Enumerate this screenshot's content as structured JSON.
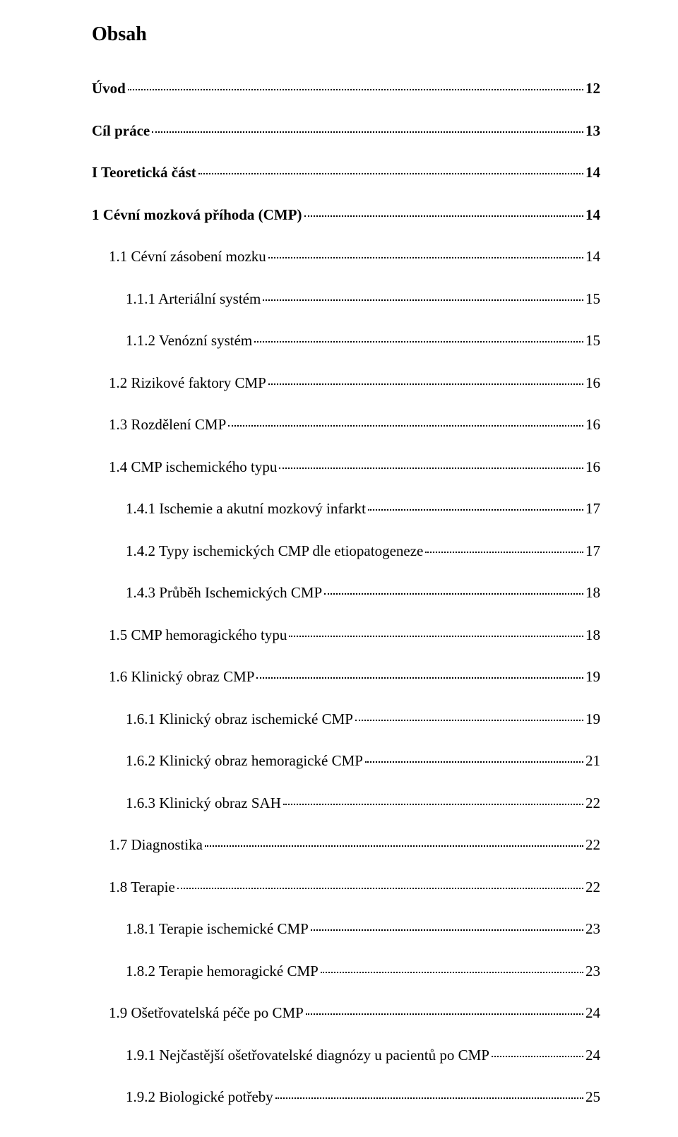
{
  "heading": "Obsah",
  "toc": [
    {
      "level": 0,
      "label": "Úvod",
      "page": "12"
    },
    {
      "level": 0,
      "label": "Cíl práce",
      "page": "13"
    },
    {
      "level": 0,
      "label": "I Teoretická část",
      "page": "14"
    },
    {
      "level": 0,
      "label": "1 Cévní mozková příhoda (CMP)",
      "page": "14"
    },
    {
      "level": 1,
      "label": "1.1 Cévní zásobení mozku",
      "page": "14"
    },
    {
      "level": 2,
      "label": "1.1.1 Arteriální systém",
      "page": "15"
    },
    {
      "level": 2,
      "label": "1.1.2 Venózní systém",
      "page": "15"
    },
    {
      "level": 1,
      "label": "1.2 Rizikové faktory CMP",
      "page": "16"
    },
    {
      "level": 1,
      "label": "1.3 Rozdělení CMP",
      "page": "16"
    },
    {
      "level": 1,
      "label": "1.4 CMP ischemického typu",
      "page": "16"
    },
    {
      "level": 2,
      "label": "1.4.1 Ischemie a akutní mozkový infarkt",
      "page": "17"
    },
    {
      "level": 2,
      "label": "1.4.2 Typy ischemických CMP dle etiopatogeneze",
      "page": "17"
    },
    {
      "level": 2,
      "label": "1.4.3 Průběh Ischemických CMP",
      "page": "18"
    },
    {
      "level": 1,
      "label": "1.5 CMP hemoragického typu",
      "page": "18"
    },
    {
      "level": 1,
      "label": "1.6 Klinický obraz CMP",
      "page": "19"
    },
    {
      "level": 2,
      "label": "1.6.1 Klinický obraz ischemické CMP",
      "page": "19"
    },
    {
      "level": 2,
      "label": "1.6.2 Klinický obraz hemoragické CMP",
      "page": "21"
    },
    {
      "level": 2,
      "label": "1.6.3 Klinický obraz SAH",
      "page": "22"
    },
    {
      "level": 1,
      "label": "1.7 Diagnostika",
      "page": "22"
    },
    {
      "level": 1,
      "label": "1.8 Terapie",
      "page": "22"
    },
    {
      "level": 2,
      "label": "1.8.1 Terapie ischemické CMP",
      "page": "23"
    },
    {
      "level": 2,
      "label": "1.8.2 Terapie hemoragické CMP",
      "page": "23"
    },
    {
      "level": 1,
      "label": "1.9 Ošetřovatelská péče po CMP",
      "page": "24"
    },
    {
      "level": 2,
      "label": "1.9.1 Nejčastější ošetřovatelské diagnózy u pacientů po CMP",
      "page": "24"
    },
    {
      "level": 2,
      "label": "1.9.2 Biologické potřeby",
      "page": "25"
    }
  ]
}
